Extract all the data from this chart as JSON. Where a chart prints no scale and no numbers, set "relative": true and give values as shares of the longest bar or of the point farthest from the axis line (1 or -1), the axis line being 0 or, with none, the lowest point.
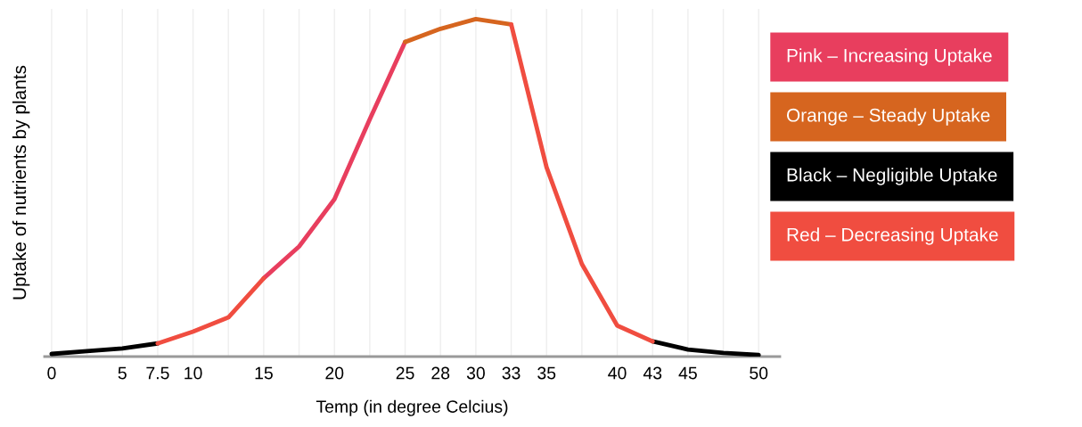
{
  "chart_data": {
    "type": "line",
    "relative": true,
    "xlabel": "Temp (in degree Celcius)",
    "ylabel": "Uptake of nutrients by plants",
    "categories": [
      "0",
      null,
      "5",
      "7.5",
      "10",
      null,
      "15",
      null,
      "20",
      null,
      "25",
      "28",
      "30",
      "33",
      "35",
      null,
      "40",
      "43",
      "45",
      null,
      "50"
    ],
    "series": [
      {
        "name": "Pink – Increasing Uptake",
        "color": "#e83e5e",
        "values": [
          null,
          null,
          null,
          null,
          null,
          null,
          0.232,
          0.326,
          0.466,
          0.703,
          0.932,
          null,
          null,
          null,
          null,
          null,
          null,
          null,
          null,
          null,
          null
        ]
      },
      {
        "name": "Orange – Steady Uptake",
        "color": "#d6651f",
        "values": [
          null,
          null,
          null,
          null,
          null,
          null,
          null,
          null,
          null,
          null,
          0.932,
          0.971,
          1,
          0.984,
          null,
          null,
          null,
          null,
          null,
          null,
          null
        ]
      },
      {
        "name": "Black – Negligible Uptake",
        "color": "#000000",
        "values": [
          0.008,
          0.016,
          0.024,
          0.039,
          null,
          null,
          null,
          null,
          null,
          null,
          null,
          null,
          null,
          null,
          null,
          null,
          null,
          0.045,
          0.021,
          0.011,
          0.005
        ]
      },
      {
        "name": "Red – Decreasing Uptake",
        "color": "#f04d40",
        "values": [
          null,
          null,
          null,
          0.039,
          0.074,
          0.116,
          0.232,
          null,
          null,
          null,
          null,
          null,
          null,
          0.984,
          0.561,
          0.274,
          0.092,
          0.045,
          null,
          null,
          null
        ]
      }
    ],
    "grid": "x",
    "legend": "right",
    "marker": "none",
    "line_style": "solid"
  }
}
